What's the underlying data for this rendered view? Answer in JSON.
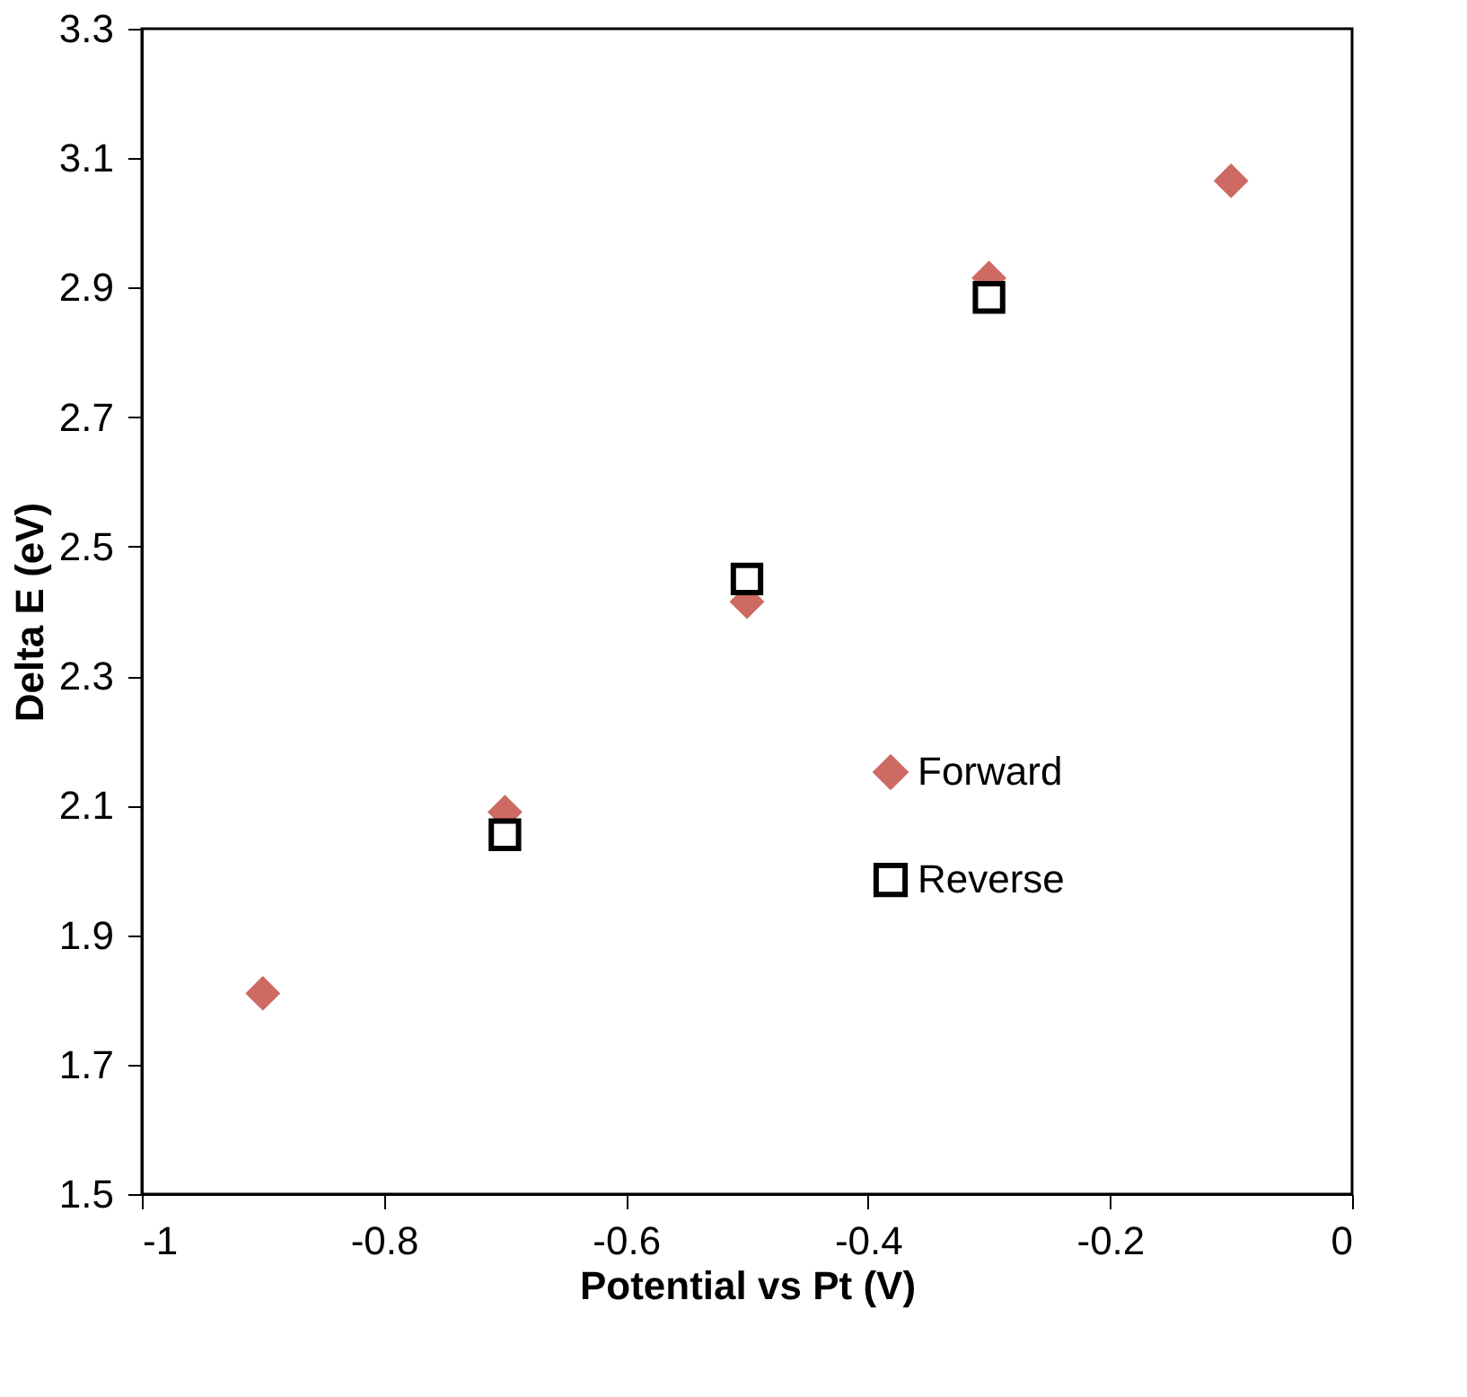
{
  "chart_data": {
    "type": "scatter",
    "xlabel": "Potential vs Pt (V)",
    "ylabel": "Delta E (eV)",
    "xlim": [
      -1,
      0
    ],
    "xticks": [
      -1,
      -0.8,
      -0.6,
      -0.4,
      -0.2,
      0
    ],
    "ylim": [
      1.5,
      3.3
    ],
    "yticks": [
      1.5,
      1.7,
      1.9,
      2.1,
      2.3,
      2.5,
      2.7,
      2.9,
      3.1,
      3.3
    ],
    "grid": false,
    "legend": "bottom right",
    "series": [
      {
        "name": "Forward",
        "color": "#cd6a63",
        "marker": "diamond",
        "x": [
          -0.9,
          -0.7,
          -0.5,
          -0.3,
          -0.1
        ],
        "values": [
          1.81,
          2.09,
          2.415,
          2.915,
          3.065
        ]
      },
      {
        "name": "Reverse",
        "color": "#000000",
        "marker": "square",
        "x": [
          -0.7,
          -0.5,
          -0.3
        ],
        "values": [
          2.055,
          2.45,
          2.885
        ]
      }
    ]
  }
}
